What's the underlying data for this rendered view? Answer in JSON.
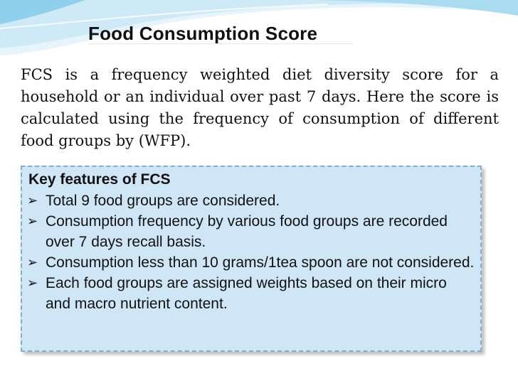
{
  "slide": {
    "title": "Food Consumption Score",
    "paragraph": "FCS is a frequency weighted diet diversity score for a household or an individual over past 7 days. Here the score is calculated using the frequency of consumption of different food groups by (WFP).",
    "box": {
      "heading": "Key features of FCS",
      "bullets": [
        "Total 9 food groups are considered.",
        "Consumption frequency by various food groups are recorded over 7 days recall basis.",
        "Consumption less than 10 grams/1tea spoon are not considered.",
        "Each food groups are assigned weights based on  their micro and macro nutrient content."
      ]
    }
  },
  "colors": {
    "box_fill": "#cfe6f7",
    "box_border": "#7ab0d6",
    "wave_dark": "#8fd0ec",
    "wave_light": "#cfeaf7"
  },
  "icons": {
    "bullet": "arrow-bullet-icon"
  }
}
